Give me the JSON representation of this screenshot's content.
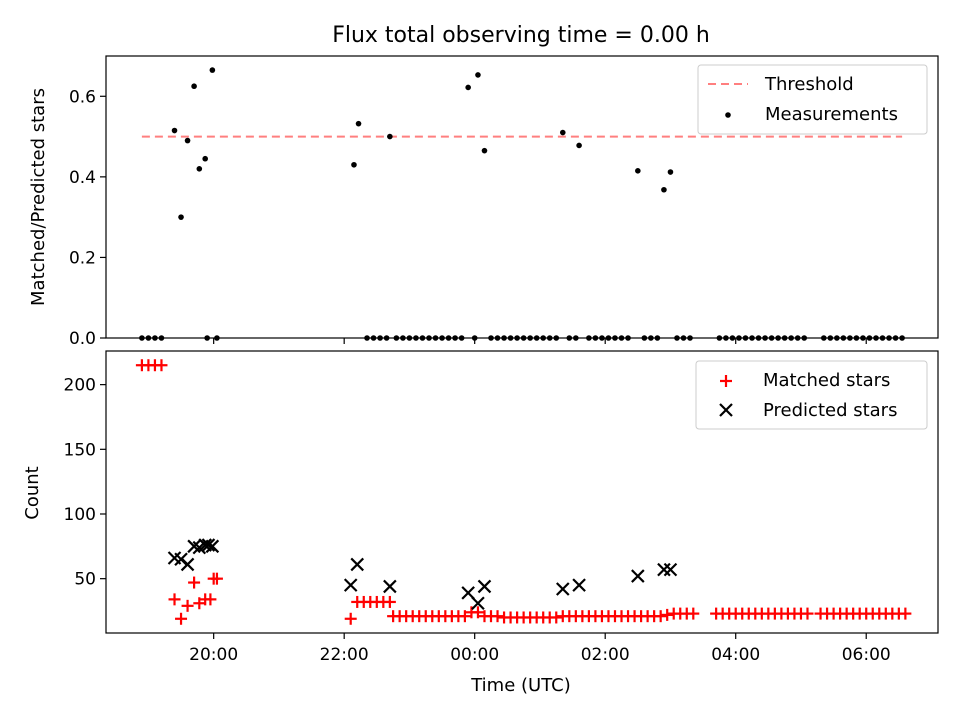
{
  "chart_data": [
    {
      "type": "scatter",
      "title": "Flux total observing time = 0.00 h",
      "xlabel": "",
      "ylabel": "Matched/Predicted stars",
      "ylim": [
        0,
        0.7
      ],
      "yticks": [
        0.0,
        0.2,
        0.4,
        0.6
      ],
      "ytick_labels": [
        "0.0",
        "0.2",
        "0.4",
        "0.6"
      ],
      "xlim_hours": [
        18.35,
        31.1
      ],
      "grid": false,
      "legend": "top-right",
      "threshold": {
        "name": "Threshold",
        "value": 0.5,
        "x_range": [
          18.9,
          30.55
        ],
        "color": "#ff7f7f"
      },
      "series": [
        {
          "name": "Measurements",
          "color": "#000000",
          "points": [
            [
              19.4,
              0.515
            ],
            [
              19.5,
              0.3
            ],
            [
              19.6,
              0.49
            ],
            [
              19.7,
              0.625
            ],
            [
              19.78,
              0.42
            ],
            [
              19.87,
              0.445
            ],
            [
              19.98,
              0.665
            ],
            [
              22.15,
              0.43
            ],
            [
              22.22,
              0.532
            ],
            [
              22.7,
              0.5
            ],
            [
              23.9,
              0.622
            ],
            [
              24.05,
              0.653
            ],
            [
              24.15,
              0.465
            ],
            [
              25.35,
              0.51
            ],
            [
              25.6,
              0.478
            ],
            [
              26.5,
              0.415
            ],
            [
              26.9,
              0.368
            ],
            [
              27.0,
              0.412
            ],
            [
              18.9,
              0
            ],
            [
              19.0,
              0
            ],
            [
              19.1,
              0
            ],
            [
              19.2,
              0
            ],
            [
              19.9,
              0
            ],
            [
              20.05,
              0
            ],
            [
              22.35,
              0
            ],
            [
              22.45,
              0
            ],
            [
              22.55,
              0
            ],
            [
              22.65,
              0
            ],
            [
              22.8,
              0
            ],
            [
              22.9,
              0
            ],
            [
              23.0,
              0
            ],
            [
              23.1,
              0
            ],
            [
              23.2,
              0
            ],
            [
              23.3,
              0
            ],
            [
              23.4,
              0
            ],
            [
              23.5,
              0
            ],
            [
              23.6,
              0
            ],
            [
              23.7,
              0
            ],
            [
              23.8,
              0
            ],
            [
              24.0,
              0
            ],
            [
              24.25,
              0
            ],
            [
              24.35,
              0
            ],
            [
              24.45,
              0
            ],
            [
              24.55,
              0
            ],
            [
              24.65,
              0
            ],
            [
              24.75,
              0
            ],
            [
              24.85,
              0
            ],
            [
              24.95,
              0
            ],
            [
              25.05,
              0
            ],
            [
              25.15,
              0
            ],
            [
              25.25,
              0
            ],
            [
              25.45,
              0
            ],
            [
              25.55,
              0
            ],
            [
              25.75,
              0
            ],
            [
              25.85,
              0
            ],
            [
              25.95,
              0
            ],
            [
              26.05,
              0
            ],
            [
              26.15,
              0
            ],
            [
              26.25,
              0
            ],
            [
              26.35,
              0
            ],
            [
              26.6,
              0
            ],
            [
              26.7,
              0
            ],
            [
              26.8,
              0
            ],
            [
              27.1,
              0
            ],
            [
              27.2,
              0
            ],
            [
              27.3,
              0
            ],
            [
              27.75,
              0
            ],
            [
              27.85,
              0
            ],
            [
              27.95,
              0
            ],
            [
              28.05,
              0
            ],
            [
              28.15,
              0
            ],
            [
              28.25,
              0
            ],
            [
              28.35,
              0
            ],
            [
              28.45,
              0
            ],
            [
              28.55,
              0
            ],
            [
              28.65,
              0
            ],
            [
              28.75,
              0
            ],
            [
              28.85,
              0
            ],
            [
              28.95,
              0
            ],
            [
              29.05,
              0
            ],
            [
              29.35,
              0
            ],
            [
              29.45,
              0
            ],
            [
              29.55,
              0
            ],
            [
              29.65,
              0
            ],
            [
              29.75,
              0
            ],
            [
              29.85,
              0
            ],
            [
              29.95,
              0
            ],
            [
              30.05,
              0
            ],
            [
              30.15,
              0
            ],
            [
              30.25,
              0
            ],
            [
              30.35,
              0
            ],
            [
              30.45,
              0
            ],
            [
              30.55,
              0
            ]
          ]
        }
      ]
    },
    {
      "type": "scatter",
      "title": "",
      "xlabel": "Time (UTC)",
      "ylabel": "Count",
      "ylim": [
        8,
        226
      ],
      "yticks": [
        50,
        100,
        150,
        200
      ],
      "ytick_labels": [
        "50",
        "100",
        "150",
        "200"
      ],
      "xlim_hours": [
        18.35,
        31.1
      ],
      "xticks_hours": [
        20,
        22,
        24,
        26,
        28,
        30
      ],
      "xtick_labels": [
        "20:00",
        "22:00",
        "00:00",
        "02:00",
        "04:00",
        "06:00"
      ],
      "grid": false,
      "legend": "top-right",
      "series": [
        {
          "name": "Matched stars",
          "marker": "plus",
          "color": "#ff0000",
          "points": [
            [
              18.9,
              215
            ],
            [
              19.0,
              215
            ],
            [
              19.1,
              215
            ],
            [
              19.2,
              215
            ],
            [
              19.4,
              34
            ],
            [
              19.5,
              19
            ],
            [
              19.6,
              29
            ],
            [
              19.7,
              47
            ],
            [
              19.78,
              31
            ],
            [
              19.87,
              34
            ],
            [
              19.95,
              34
            ],
            [
              20.0,
              50
            ],
            [
              20.05,
              50
            ],
            [
              22.1,
              19
            ],
            [
              22.2,
              32
            ],
            [
              22.3,
              32
            ],
            [
              22.4,
              32
            ],
            [
              22.5,
              32
            ],
            [
              22.6,
              32
            ],
            [
              22.7,
              32
            ],
            [
              22.75,
              21
            ],
            [
              22.85,
              21
            ],
            [
              22.95,
              21
            ],
            [
              23.05,
              21
            ],
            [
              23.15,
              21
            ],
            [
              23.25,
              21
            ],
            [
              23.35,
              21
            ],
            [
              23.45,
              21
            ],
            [
              23.55,
              21
            ],
            [
              23.65,
              21
            ],
            [
              23.75,
              21
            ],
            [
              23.85,
              21
            ],
            [
              23.95,
              24
            ],
            [
              24.05,
              24
            ],
            [
              24.15,
              21
            ],
            [
              24.25,
              21
            ],
            [
              24.35,
              21
            ],
            [
              24.45,
              20
            ],
            [
              24.55,
              20
            ],
            [
              24.65,
              20
            ],
            [
              24.75,
              20
            ],
            [
              24.85,
              20
            ],
            [
              24.95,
              20
            ],
            [
              25.05,
              20
            ],
            [
              25.15,
              20
            ],
            [
              25.25,
              20
            ],
            [
              25.35,
              21
            ],
            [
              25.45,
              21
            ],
            [
              25.55,
              21
            ],
            [
              25.65,
              21
            ],
            [
              25.75,
              21
            ],
            [
              25.85,
              21
            ],
            [
              25.95,
              21
            ],
            [
              26.05,
              21
            ],
            [
              26.15,
              21
            ],
            [
              26.25,
              21
            ],
            [
              26.35,
              21
            ],
            [
              26.45,
              21
            ],
            [
              26.55,
              21
            ],
            [
              26.65,
              21
            ],
            [
              26.75,
              21
            ],
            [
              26.85,
              21
            ],
            [
              26.95,
              22
            ],
            [
              27.05,
              23
            ],
            [
              27.15,
              23
            ],
            [
              27.25,
              23
            ],
            [
              27.35,
              23
            ],
            [
              27.7,
              23
            ],
            [
              27.8,
              23
            ],
            [
              27.9,
              23
            ],
            [
              28.0,
              23
            ],
            [
              28.1,
              23
            ],
            [
              28.2,
              23
            ],
            [
              28.3,
              23
            ],
            [
              28.4,
              23
            ],
            [
              28.5,
              23
            ],
            [
              28.6,
              23
            ],
            [
              28.7,
              23
            ],
            [
              28.8,
              23
            ],
            [
              28.9,
              23
            ],
            [
              29.0,
              23
            ],
            [
              29.1,
              23
            ],
            [
              29.3,
              23
            ],
            [
              29.4,
              23
            ],
            [
              29.5,
              23
            ],
            [
              29.6,
              23
            ],
            [
              29.7,
              23
            ],
            [
              29.8,
              23
            ],
            [
              29.9,
              23
            ],
            [
              30.0,
              23
            ],
            [
              30.1,
              23
            ],
            [
              30.2,
              23
            ],
            [
              30.3,
              23
            ],
            [
              30.4,
              23
            ],
            [
              30.5,
              23
            ],
            [
              30.6,
              23
            ]
          ]
        },
        {
          "name": "Predicted stars",
          "marker": "x",
          "color": "#000000",
          "points": [
            [
              19.4,
              66
            ],
            [
              19.5,
              65
            ],
            [
              19.6,
              61
            ],
            [
              19.7,
              75
            ],
            [
              19.78,
              74
            ],
            [
              19.87,
              76
            ],
            [
              19.92,
              76
            ],
            [
              19.98,
              75
            ],
            [
              22.1,
              45
            ],
            [
              22.2,
              61
            ],
            [
              22.7,
              44
            ],
            [
              23.9,
              39
            ],
            [
              24.05,
              31
            ],
            [
              24.15,
              44
            ],
            [
              25.35,
              42
            ],
            [
              25.6,
              45
            ],
            [
              26.5,
              52
            ],
            [
              26.9,
              57
            ],
            [
              27.0,
              57
            ]
          ]
        }
      ]
    }
  ]
}
